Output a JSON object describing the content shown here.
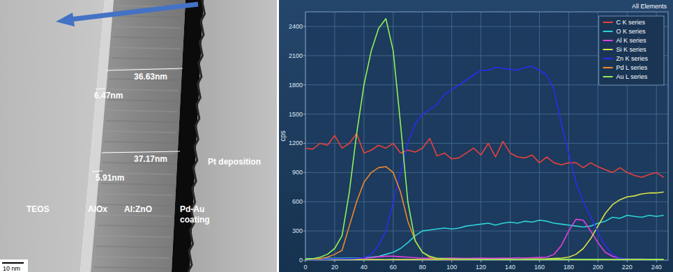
{
  "micrograph": {
    "measurements": [
      "36.63nm",
      "6.47nm",
      "37.17nm",
      "5.91nm"
    ],
    "layers": [
      "TEOS",
      "AlOx",
      "Al:ZnO",
      "Pd-Au coating",
      "Pt deposition"
    ],
    "scale_bar": "10 nm"
  },
  "chart_data": {
    "type": "line",
    "title": "All Elements",
    "y_label": "cps",
    "x": [
      0,
      5,
      10,
      15,
      20,
      25,
      30,
      35,
      40,
      45,
      50,
      55,
      60,
      65,
      70,
      75,
      80,
      85,
      90,
      95,
      100,
      105,
      110,
      115,
      120,
      125,
      130,
      135,
      140,
      145,
      150,
      155,
      160,
      165,
      170,
      175,
      180,
      185,
      190,
      195,
      200,
      205,
      210,
      215,
      220,
      225,
      230,
      235,
      240,
      245
    ],
    "xlim": [
      0,
      248
    ],
    "xticks": [
      0,
      20,
      40,
      60,
      80,
      100,
      120,
      140,
      160,
      180,
      200,
      220,
      240
    ],
    "ylim": [
      0,
      2550
    ],
    "yticks": [
      0,
      300,
      600,
      900,
      1200,
      1500,
      1800,
      2100,
      2400
    ],
    "grid": true,
    "legend": "upper right",
    "series": [
      {
        "name": "C K series",
        "color": "#e8413c",
        "values": [
          1150,
          1140,
          1200,
          1180,
          1280,
          1150,
          1200,
          1300,
          1100,
          1130,
          1180,
          1150,
          1200,
          1100,
          1130,
          1110,
          1150,
          1250,
          1070,
          1100,
          1040,
          1050,
          1100,
          1150,
          1080,
          1200,
          1060,
          1220,
          1100,
          1060,
          1050,
          1080,
          1000,
          1060,
          1000,
          980,
          1000,
          1000,
          950,
          1000,
          960,
          930,
          900,
          950,
          900,
          870,
          850,
          880,
          900,
          850
        ]
      },
      {
        "name": "O K series",
        "color": "#2ed3d8",
        "values": [
          15,
          15,
          18,
          20,
          20,
          20,
          22,
          22,
          25,
          30,
          40,
          60,
          80,
          120,
          180,
          250,
          300,
          310,
          320,
          330,
          320,
          330,
          350,
          360,
          370,
          380,
          360,
          380,
          390,
          380,
          400,
          390,
          410,
          400,
          380,
          370,
          360,
          350,
          340,
          350,
          380,
          400,
          440,
          430,
          460,
          450,
          440,
          460,
          450,
          460
        ]
      },
      {
        "name": "Al K series",
        "color": "#e43ee0",
        "values": [
          5,
          5,
          8,
          10,
          10,
          12,
          15,
          18,
          20,
          25,
          35,
          40,
          40,
          35,
          30,
          25,
          20,
          20,
          18,
          20,
          22,
          20,
          18,
          20,
          22,
          20,
          20,
          22,
          20,
          25,
          22,
          25,
          28,
          30,
          60,
          150,
          300,
          420,
          410,
          300,
          180,
          80,
          40,
          20,
          12,
          10,
          10,
          8,
          8,
          8
        ]
      },
      {
        "name": "Si K series",
        "color": "#d9e24a",
        "values": [
          3,
          3,
          4,
          4,
          5,
          5,
          5,
          6,
          5,
          6,
          6,
          5,
          6,
          6,
          7,
          6,
          7,
          7,
          6,
          7,
          7,
          8,
          7,
          8,
          8,
          9,
          8,
          9,
          10,
          9,
          10,
          12,
          12,
          14,
          18,
          22,
          30,
          60,
          120,
          220,
          350,
          480,
          570,
          620,
          650,
          660,
          680,
          690,
          690,
          700
        ]
      },
      {
        "name": "Zn K series",
        "color": "#2b2bf0",
        "values": [
          8,
          8,
          10,
          10,
          12,
          12,
          15,
          18,
          25,
          60,
          150,
          300,
          600,
          900,
          1200,
          1400,
          1500,
          1550,
          1600,
          1700,
          1750,
          1800,
          1850,
          1900,
          1950,
          1950,
          1980,
          1970,
          1960,
          1950,
          1980,
          1990,
          1950,
          1900,
          1750,
          1400,
          1100,
          800,
          600,
          450,
          280,
          150,
          60,
          20,
          10,
          8,
          5,
          5,
          5,
          5
        ]
      },
      {
        "name": "Pd L series",
        "color": "#ee8a2a",
        "values": [
          10,
          12,
          15,
          30,
          60,
          100,
          350,
          600,
          800,
          900,
          950,
          960,
          900,
          700,
          400,
          200,
          80,
          30,
          15,
          10,
          8,
          8,
          6,
          6,
          5,
          5,
          5,
          5,
          5,
          5,
          5,
          5,
          5,
          5,
          5,
          5,
          5,
          5,
          5,
          5,
          5,
          5,
          5,
          5,
          5,
          5,
          5,
          5,
          5,
          5
        ]
      },
      {
        "name": "Au L series",
        "color": "#8ef05a",
        "values": [
          10,
          15,
          30,
          60,
          120,
          250,
          700,
          1300,
          1800,
          2150,
          2380,
          2480,
          2150,
          1400,
          600,
          200,
          80,
          40,
          20,
          15,
          12,
          10,
          10,
          10,
          8,
          8,
          8,
          8,
          8,
          8,
          8,
          8,
          8,
          8,
          8,
          8,
          8,
          8,
          8,
          8,
          8,
          8,
          8,
          8,
          8,
          8,
          8,
          8,
          8,
          8
        ]
      }
    ]
  }
}
